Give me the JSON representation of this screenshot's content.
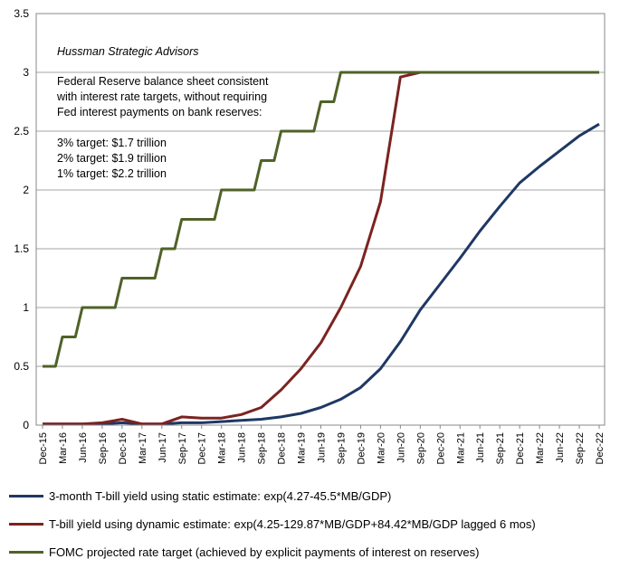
{
  "chart_data": {
    "type": "line",
    "x_tick_labels": [
      "Dec-15",
      "Mar-16",
      "Jun-16",
      "Sep-16",
      "Dec-16",
      "Mar-17",
      "Jun-17",
      "Sep-17",
      "Dec-17",
      "Mar-18",
      "Jun-18",
      "Sep-18",
      "Dec-18",
      "Mar-19",
      "Jun-19",
      "Sep-19",
      "Dec-19",
      "Mar-20",
      "Jun-20",
      "Sep-20",
      "Dec-20",
      "Mar-21",
      "Jun-21",
      "Sep-21",
      "Dec-21",
      "Mar-22",
      "Jun-22",
      "Sep-22",
      "Dec-22"
    ],
    "y_tick_labels": [
      "0",
      "0.5",
      "1",
      "1.5",
      "2",
      "2.5",
      "3",
      "3.5"
    ],
    "ylim": [
      0,
      3.5
    ],
    "grid": "horizontal",
    "brand": "Hussman Strategic Advisors",
    "annotation_lines": [
      "Federal Reserve balance sheet consistent",
      "with interest rate targets, without requiring",
      "Fed interest payments on bank reserves:",
      "",
      "3% target: $1.7 trillion",
      "2% target: $1.9 trillion",
      "1% target: $2.2 trillion"
    ],
    "series": [
      {
        "name": "3-month T-bill yield using static estimate: exp(4.27-45.5*MB/GDP)",
        "color": "#1f3864",
        "x": [
          "Dec-15",
          "Mar-16",
          "Jun-16",
          "Sep-16",
          "Dec-16",
          "Mar-17",
          "Jun-17",
          "Sep-17",
          "Dec-17",
          "Mar-18",
          "Jun-18",
          "Sep-18",
          "Dec-18",
          "Mar-19",
          "Jun-19",
          "Sep-19",
          "Dec-19",
          "Mar-20",
          "Jun-20",
          "Sep-20",
          "Dec-20",
          "Mar-21",
          "Jun-21",
          "Sep-21",
          "Dec-21",
          "Mar-22",
          "Jun-22",
          "Sep-22",
          "Dec-22"
        ],
        "values": [
          0.01,
          0.01,
          0.01,
          0.01,
          0.02,
          0.01,
          0.01,
          0.02,
          0.02,
          0.03,
          0.04,
          0.05,
          0.07,
          0.1,
          0.15,
          0.22,
          0.32,
          0.48,
          0.71,
          0.98,
          1.2,
          1.42,
          1.65,
          1.86,
          2.06,
          2.2,
          2.33,
          2.46,
          2.56
        ]
      },
      {
        "name": "T-bill yield using dynamic estimate: exp(4.25-129.87*MB/GDP+84.42*MB/GDP lagged 6 mos)",
        "color": "#7b2320",
        "x": [
          "Dec-15",
          "Mar-16",
          "Jun-16",
          "Sep-16",
          "Dec-16",
          "Mar-17",
          "Jun-17",
          "Sep-17",
          "Dec-17",
          "Mar-18",
          "Jun-18",
          "Sep-18",
          "Dec-18",
          "Mar-19",
          "Jun-19",
          "Sep-19",
          "Dec-19",
          "Mar-20",
          "Jun-20",
          "Sep-20",
          "Dec-20",
          "Mar-21",
          "Jun-21",
          "Sep-21",
          "Dec-21",
          "Mar-22",
          "Jun-22",
          "Sep-22",
          "Dec-22"
        ],
        "values": [
          0.01,
          0.01,
          0.01,
          0.02,
          0.05,
          0.01,
          0.01,
          0.07,
          0.06,
          0.06,
          0.09,
          0.15,
          0.3,
          0.48,
          0.7,
          1.0,
          1.35,
          1.9,
          2.96,
          3.0,
          3.0,
          3.0,
          3.0,
          3.0,
          3.0,
          3.0,
          3.0,
          3.0,
          3.0
        ]
      },
      {
        "name": "FOMC projected rate target (achieved by explicit payments of interest on reserves)",
        "color": "#4f6228",
        "x": [
          "Dec-15",
          "Mar-16",
          "Jun-16",
          "Sep-16",
          "Dec-16",
          "Mar-17",
          "Jun-17",
          "Sep-17",
          "Dec-17",
          "Mar-18",
          "Jun-18",
          "Sep-18",
          "Dec-18",
          "Mar-19",
          "Jun-19",
          "Sep-19",
          "Dec-19",
          "Mar-20",
          "Jun-20",
          "Sep-20",
          "Dec-20",
          "Mar-21",
          "Jun-21",
          "Sep-21",
          "Dec-21",
          "Mar-22",
          "Jun-22",
          "Sep-22",
          "Dec-22"
        ],
        "values": [
          0.5,
          0.75,
          1.0,
          1.0,
          1.25,
          1.25,
          1.5,
          1.75,
          1.75,
          2.0,
          2.0,
          2.25,
          2.5,
          2.5,
          2.75,
          3.0,
          3.0,
          3.0,
          3.0,
          3.0,
          3.0,
          3.0,
          3.0,
          3.0,
          3.0,
          3.0,
          3.0,
          3.0,
          3.0
        ]
      }
    ]
  }
}
